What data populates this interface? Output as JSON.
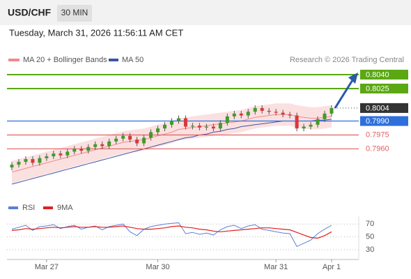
{
  "header": {
    "symbol": "USD/CHF",
    "interval": "30 MIN",
    "timestamp": "Tuesday, March 31, 2026 11:56:11 AM CET"
  },
  "legend": {
    "bands": "MA 20 + Bollinger Bands",
    "ma50": "MA 50",
    "credit": "Research © 2026 Trading Central"
  },
  "chart_data": [
    {
      "type": "candlestick",
      "categories": [
        null,
        null,
        null,
        null,
        null,
        "Mar 27",
        null,
        null,
        null,
        null,
        null,
        null,
        null,
        null,
        null,
        null,
        null,
        null,
        null,
        null,
        null,
        "Mar 30",
        null,
        null,
        null,
        null,
        null,
        null,
        null,
        null,
        null,
        null,
        null,
        null,
        null,
        null,
        null,
        null,
        "Mar 31",
        null,
        null,
        null,
        null,
        null,
        null,
        null,
        "Apr 1"
      ],
      "open": [
        0.794,
        0.7943,
        0.7946,
        0.7949,
        0.7945,
        0.795,
        0.7952,
        0.7955,
        0.7953,
        0.7957,
        0.796,
        0.7958,
        0.7962,
        0.7965,
        0.7963,
        0.7968,
        0.7971,
        0.7974,
        0.797,
        0.7966,
        0.7972,
        0.7978,
        0.7982,
        0.7986,
        0.799,
        0.7993,
        0.7984,
        0.7985,
        0.7983,
        0.7984,
        0.7982,
        0.7988,
        0.7995,
        0.7998,
        0.7996,
        0.8,
        0.8004,
        0.8001,
        0.8,
        0.7999,
        0.7997,
        0.7996,
        0.7982,
        0.7984,
        0.7986,
        0.7992,
        0.7998
      ],
      "high": [
        0.7946,
        0.7949,
        0.7952,
        0.7952,
        0.7953,
        0.7955,
        0.7958,
        0.7958,
        0.796,
        0.7963,
        0.7963,
        0.7965,
        0.7968,
        0.7968,
        0.7971,
        0.7974,
        0.7977,
        0.7977,
        0.7973,
        0.7975,
        0.7981,
        0.7985,
        0.7989,
        0.7993,
        0.7996,
        0.7996,
        0.7988,
        0.7988,
        0.7987,
        0.7987,
        0.7991,
        0.7998,
        0.8001,
        0.8001,
        0.8003,
        0.8007,
        0.8007,
        0.8004,
        0.8003,
        0.8002,
        0.8,
        0.7999,
        0.7987,
        0.7989,
        0.7995,
        0.8001,
        0.8007
      ],
      "low": [
        0.7937,
        0.794,
        0.7943,
        0.7942,
        0.7942,
        0.7947,
        0.7949,
        0.795,
        0.795,
        0.7954,
        0.7955,
        0.7955,
        0.7959,
        0.796,
        0.796,
        0.7965,
        0.7968,
        0.7967,
        0.7963,
        0.7963,
        0.7969,
        0.7975,
        0.7979,
        0.7983,
        0.7987,
        0.7981,
        0.7981,
        0.798,
        0.798,
        0.7979,
        0.7979,
        0.7985,
        0.7992,
        0.7993,
        0.7993,
        0.7997,
        0.7998,
        0.7997,
        0.7996,
        0.7994,
        0.7993,
        0.7979,
        0.7979,
        0.7981,
        0.7983,
        0.7989,
        0.7995
      ],
      "close": [
        0.7943,
        0.7946,
        0.7949,
        0.7945,
        0.795,
        0.7952,
        0.7955,
        0.7953,
        0.7957,
        0.796,
        0.7958,
        0.7962,
        0.7965,
        0.7963,
        0.7968,
        0.7971,
        0.7974,
        0.797,
        0.7966,
        0.7972,
        0.7978,
        0.7982,
        0.7986,
        0.799,
        0.7993,
        0.7984,
        0.7985,
        0.7983,
        0.7984,
        0.7982,
        0.7988,
        0.7995,
        0.7998,
        0.7996,
        0.8,
        0.8004,
        0.8001,
        0.8,
        0.7999,
        0.7997,
        0.7996,
        0.7982,
        0.7984,
        0.7986,
        0.7992,
        0.7998,
        0.8004
      ],
      "up_color": "#3f9b2a",
      "down_color": "#d9383a",
      "bands": {
        "color": "#f9d3d3",
        "line_color": "#f08a8a",
        "upper": [
          0.7947,
          0.7949,
          0.7951,
          0.7953,
          0.7955,
          0.7957,
          0.7959,
          0.7961,
          0.7963,
          0.7965,
          0.7967,
          0.7969,
          0.7971,
          0.7973,
          0.7975,
          0.7977,
          0.7979,
          0.798,
          0.7981,
          0.7982,
          0.7984,
          0.7986,
          0.7988,
          0.799,
          0.7993,
          0.7994,
          0.7995,
          0.7996,
          0.7997,
          0.7998,
          0.7999,
          0.8,
          0.8001,
          0.8002,
          0.8004,
          0.8006,
          0.8007,
          0.8008,
          0.8009,
          0.8009,
          0.8009,
          0.8007,
          0.8006,
          0.8005,
          0.8005,
          0.8006,
          0.8007
        ],
        "ma20": [
          0.7935,
          0.7937,
          0.7939,
          0.7941,
          0.7943,
          0.7945,
          0.7947,
          0.7949,
          0.7951,
          0.7953,
          0.7955,
          0.7957,
          0.7959,
          0.7961,
          0.7963,
          0.7965,
          0.7967,
          0.7968,
          0.7969,
          0.797,
          0.7972,
          0.7974,
          0.7976,
          0.7978,
          0.7981,
          0.7982,
          0.7983,
          0.7984,
          0.7985,
          0.7986,
          0.7987,
          0.7988,
          0.7989,
          0.799,
          0.7992,
          0.7994,
          0.7995,
          0.7996,
          0.7997,
          0.7997,
          0.7997,
          0.7995,
          0.7994,
          0.7993,
          0.7993,
          0.7994,
          0.7995
        ],
        "lower": [
          0.7923,
          0.7925,
          0.7927,
          0.7929,
          0.7931,
          0.7933,
          0.7935,
          0.7937,
          0.7939,
          0.7941,
          0.7943,
          0.7945,
          0.7947,
          0.7949,
          0.7951,
          0.7953,
          0.7955,
          0.7956,
          0.7957,
          0.7958,
          0.796,
          0.7962,
          0.7964,
          0.7966,
          0.7969,
          0.797,
          0.7971,
          0.7972,
          0.7973,
          0.7974,
          0.7975,
          0.7976,
          0.7977,
          0.7978,
          0.798,
          0.7982,
          0.7983,
          0.7984,
          0.7985,
          0.7985,
          0.7985,
          0.7983,
          0.7982,
          0.7981,
          0.7981,
          0.7982,
          0.7983
        ]
      },
      "ma50": {
        "color": "#3a55a4",
        "values": [
          0.7922,
          0.7924,
          0.7926,
          0.7928,
          0.793,
          0.7932,
          0.7934,
          0.7936,
          0.7938,
          0.794,
          0.7942,
          0.7944,
          0.7946,
          0.7948,
          0.795,
          0.7952,
          0.7954,
          0.7956,
          0.7958,
          0.796,
          0.7962,
          0.7964,
          0.7966,
          0.7968,
          0.797,
          0.7972,
          0.7973,
          0.7975,
          0.7976,
          0.7978,
          0.7979,
          0.7981,
          0.7982,
          0.7984,
          0.7985,
          0.7986,
          0.7987,
          0.7988,
          0.7989,
          0.799,
          0.799,
          0.799,
          0.799,
          0.799,
          0.7991,
          0.7991,
          0.7992
        ]
      },
      "ylim": [
        0.791,
        0.8049
      ],
      "levels": [
        {
          "value": 0.804,
          "label": "0.8040",
          "color": "#5aa812",
          "style": "box"
        },
        {
          "value": 0.8025,
          "label": "0.8025",
          "color": "#5aa812",
          "style": "box"
        },
        {
          "value": 0.8004,
          "label": "0.8004",
          "color": "#333333",
          "style": "price"
        },
        {
          "value": 0.799,
          "label": "0.7990",
          "color": "#2f6fdc",
          "style": "box"
        },
        {
          "value": 0.7975,
          "label": "0.7975",
          "color": "#e06060",
          "style": "text"
        },
        {
          "value": 0.796,
          "label": "0.7960",
          "color": "#e06060",
          "style": "text"
        }
      ]
    },
    {
      "type": "line",
      "series": [
        {
          "name": "RSI",
          "color": "#5b7fd6",
          "values": [
            62,
            65,
            68,
            60,
            66,
            67,
            69,
            63,
            66,
            68,
            62,
            65,
            67,
            61,
            66,
            68,
            70,
            58,
            52,
            62,
            66,
            68,
            70,
            71,
            72,
            55,
            57,
            54,
            56,
            53,
            61,
            66,
            68,
            63,
            67,
            69,
            62,
            60,
            58,
            56,
            55,
            35,
            40,
            45,
            55,
            62,
            68
          ]
        },
        {
          "name": "9MA",
          "color": "#e02020",
          "values": [
            60,
            61,
            63,
            62,
            63,
            64,
            65,
            64,
            65,
            66,
            65,
            65,
            66,
            65,
            65,
            66,
            67,
            65,
            63,
            62,
            62,
            63,
            64,
            66,
            67,
            65,
            64,
            62,
            61,
            59,
            58,
            59,
            60,
            61,
            62,
            63,
            64,
            64,
            63,
            62,
            61,
            57,
            53,
            49,
            48,
            52,
            58
          ]
        }
      ],
      "ylim": [
        17,
        80
      ],
      "yticks": [
        30,
        50,
        70
      ]
    }
  ]
}
